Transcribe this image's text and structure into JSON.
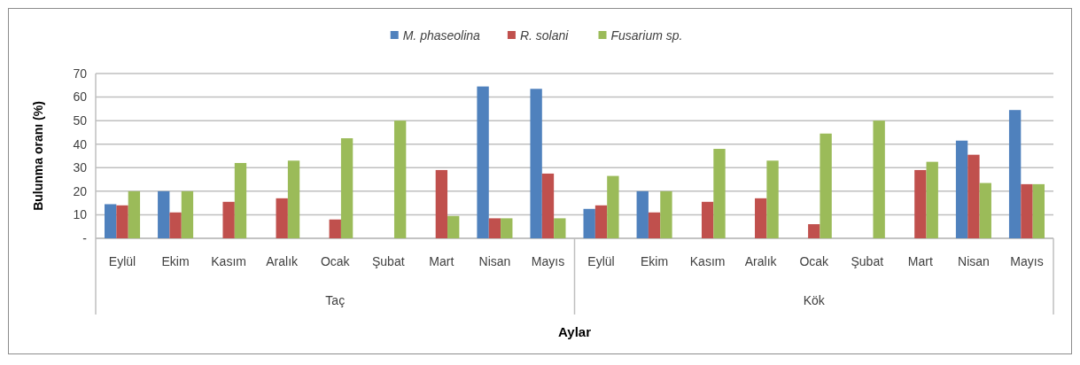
{
  "chart_data": {
    "type": "bar",
    "categories": [
      "Eylül",
      "Ekim",
      "Kasım",
      "Aralık",
      "Ocak",
      "Şubat",
      "Mart",
      "Nisan",
      "Mayıs",
      "Eylül",
      "Ekim",
      "Kasım",
      "Aralık",
      "Ocak",
      "Şubat",
      "Mart",
      "Nisan",
      "Mayıs"
    ],
    "annotations": [
      "Taç",
      "Kök"
    ],
    "xlabel": "Aylar",
    "ylabel": "Bulunma oranı (%)",
    "series": [
      {
        "name": "M. phaseolina",
        "color": "#4f81bd",
        "values": [
          14.5,
          20,
          null,
          null,
          null,
          null,
          null,
          64.5,
          63.5,
          12.5,
          20,
          null,
          null,
          null,
          null,
          null,
          41.5,
          54.5
        ]
      },
      {
        "name": "R. solani",
        "color": "#c0504d",
        "values": [
          14,
          11,
          15.5,
          17,
          8,
          null,
          29,
          8.5,
          27.5,
          14,
          11,
          15.5,
          17,
          6,
          null,
          29,
          35.5,
          23
        ]
      },
      {
        "name": "Fusarium sp.",
        "color": "#9bbb59",
        "values": [
          20,
          20,
          32,
          33,
          42.5,
          50,
          9.5,
          8.5,
          8.5,
          26.5,
          20,
          38,
          33,
          44.5,
          50,
          32.5,
          23.5,
          23
        ]
      }
    ],
    "ylim": [
      0,
      70
    ],
    "yticks": [
      {
        "value": 0,
        "label": "-"
      },
      10,
      20,
      30,
      40,
      50,
      60,
      70
    ],
    "grid": "y",
    "legend": "top"
  }
}
